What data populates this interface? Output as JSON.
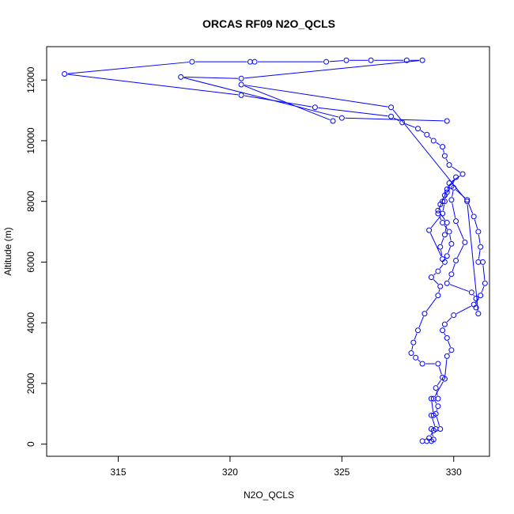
{
  "chart_data": {
    "type": "line",
    "title": "ORCAS RF09 N2O_QCLS",
    "xlabel": "N2O_QCLS",
    "ylabel": "Altitude (m)",
    "xlim": [
      311.8,
      331.6
    ],
    "ylim": [
      -400,
      13100
    ],
    "xticks": [
      315,
      320,
      325,
      330
    ],
    "xtick_labels": [
      "315",
      "320",
      "325",
      "330"
    ],
    "yticks": [
      0,
      2000,
      4000,
      6000,
      8000,
      10000,
      12000
    ],
    "ytick_labels": [
      "0",
      "2000",
      "4000",
      "6000",
      "8000",
      "10000",
      "12000"
    ],
    "grid": false,
    "marker": "open-circle",
    "series_color": "#0000ff",
    "series": [
      {
        "x": [
          328.6,
          328.8,
          329.0,
          329.1,
          329.0,
          329.2,
          329.0,
          329.1,
          329.0,
          329.3,
          329.2,
          329.5,
          329.3,
          328.6,
          328.3,
          328.1,
          328.2,
          328.4,
          328.7,
          329.3,
          329.4,
          329.0,
          329.3,
          329.6,
          329.7,
          329.9,
          329.8,
          329.5,
          329.3,
          329.4,
          329.6,
          329.9,
          330.1,
          329.7,
          329.5,
          329.3,
          329.7,
          329.6,
          329.4,
          329.5,
          328.9,
          329.5,
          329.6,
          329.7,
          329.8,
          330.4,
          329.8,
          329.6,
          329.5,
          329.1,
          328.8,
          328.4,
          327.7,
          327.2,
          323.8,
          320.5,
          312.6,
          318.3,
          320.9,
          321.1,
          324.3,
          325.2,
          326.3,
          327.9,
          328.6,
          320.5,
          317.8,
          325.0,
          329.7
        ],
        "y": [
          100,
          100,
          100,
          150,
          500,
          500,
          950,
          950,
          1500,
          1500,
          1850,
          2200,
          2650,
          2650,
          2850,
          3000,
          3350,
          3750,
          4300,
          4900,
          5200,
          5500,
          5700,
          6000,
          6200,
          6600,
          7000,
          7300,
          7600,
          7900,
          8200,
          8500,
          8800,
          8400,
          8000,
          7700,
          7300,
          6900,
          6500,
          6100,
          7050,
          7600,
          8000,
          8300,
          8600,
          8900,
          9200,
          9500,
          9800,
          10000,
          10200,
          10400,
          10600,
          10800,
          11100,
          11500,
          12200,
          12600,
          12600,
          12600,
          12600,
          12650,
          12650,
          12650,
          12650,
          12050,
          12100,
          10750,
          10650
        ]
      },
      {
        "x": [
          328.9,
          329.1,
          329.4,
          329.2,
          329.3,
          329.1,
          329.6,
          329.7,
          329.9,
          329.7,
          329.5,
          329.6,
          330.0,
          330.9,
          331.2,
          331.4,
          331.3,
          331.1,
          331.2,
          331.1,
          330.9,
          330.6,
          330.0,
          329.9,
          330.1,
          330.5,
          330.1,
          329.9,
          329.7,
          330.8,
          331.0,
          331.0,
          331.1,
          330.6,
          327.2,
          320.5,
          324.6
        ],
        "y": [
          200,
          450,
          500,
          1000,
          1250,
          1500,
          2150,
          2900,
          3100,
          3500,
          3750,
          3950,
          4250,
          4600,
          4900,
          5300,
          6000,
          6000,
          6500,
          7000,
          7500,
          8050,
          8450,
          8050,
          7350,
          6650,
          6050,
          5600,
          5300,
          5000,
          4800,
          4500,
          4300,
          8000,
          11100,
          11850,
          10650
        ]
      }
    ]
  }
}
